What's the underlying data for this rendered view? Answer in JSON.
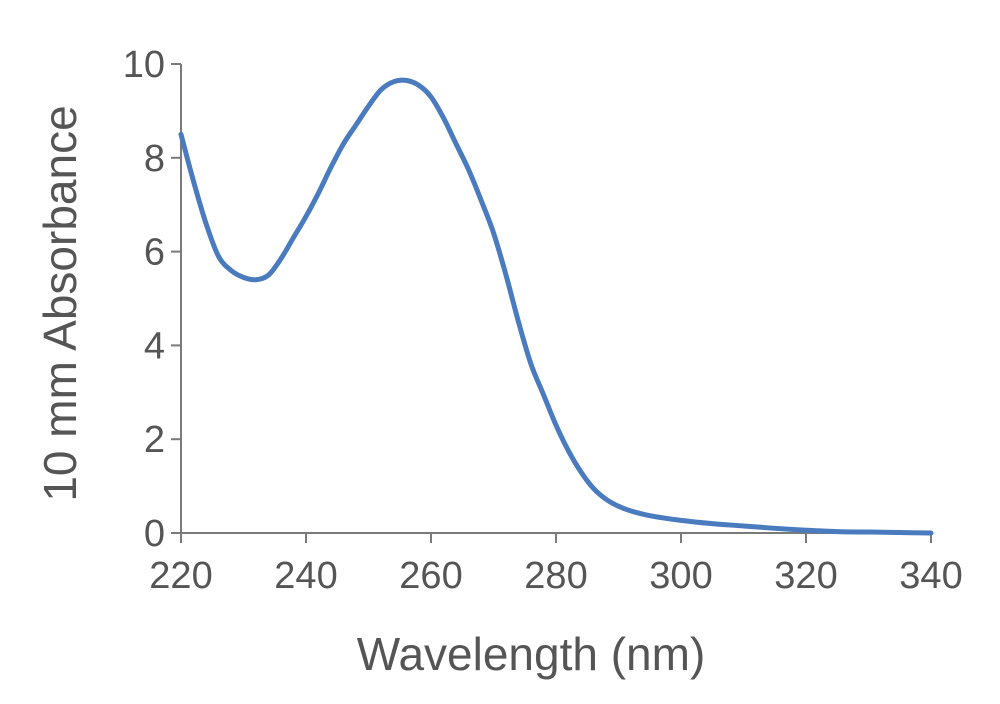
{
  "chart_data": {
    "type": "line",
    "title": "",
    "xlabel": "Wavelength (nm)",
    "ylabel": "10 mm Absorbance",
    "xlim": [
      220,
      340
    ],
    "ylim": [
      0,
      10
    ],
    "x_ticks": [
      220,
      240,
      260,
      280,
      300,
      320,
      340
    ],
    "y_ticks": [
      0,
      2,
      4,
      6,
      8,
      10
    ],
    "grid": false,
    "legend": "none",
    "series": [
      {
        "color": "#4a7bbf",
        "x": [
          220,
          222,
          224,
          226,
          228,
          230,
          232,
          234,
          236,
          238,
          240,
          242,
          244,
          246,
          248,
          250,
          252,
          254,
          256,
          258,
          260,
          262,
          264,
          266,
          268,
          270,
          272,
          274,
          276,
          278,
          280,
          282,
          284,
          286,
          288,
          290,
          292,
          295,
          300,
          305,
          310,
          315,
          320,
          325,
          330,
          335,
          340
        ],
        "y": [
          8.5,
          7.5,
          6.6,
          5.9,
          5.6,
          5.45,
          5.4,
          5.5,
          5.85,
          6.3,
          6.75,
          7.25,
          7.8,
          8.3,
          8.7,
          9.1,
          9.45,
          9.62,
          9.65,
          9.55,
          9.3,
          8.85,
          8.3,
          7.75,
          7.1,
          6.4,
          5.5,
          4.5,
          3.6,
          2.95,
          2.3,
          1.75,
          1.3,
          0.95,
          0.72,
          0.57,
          0.47,
          0.37,
          0.27,
          0.2,
          0.15,
          0.1,
          0.06,
          0.03,
          0.02,
          0.01,
          0.0
        ]
      }
    ]
  }
}
